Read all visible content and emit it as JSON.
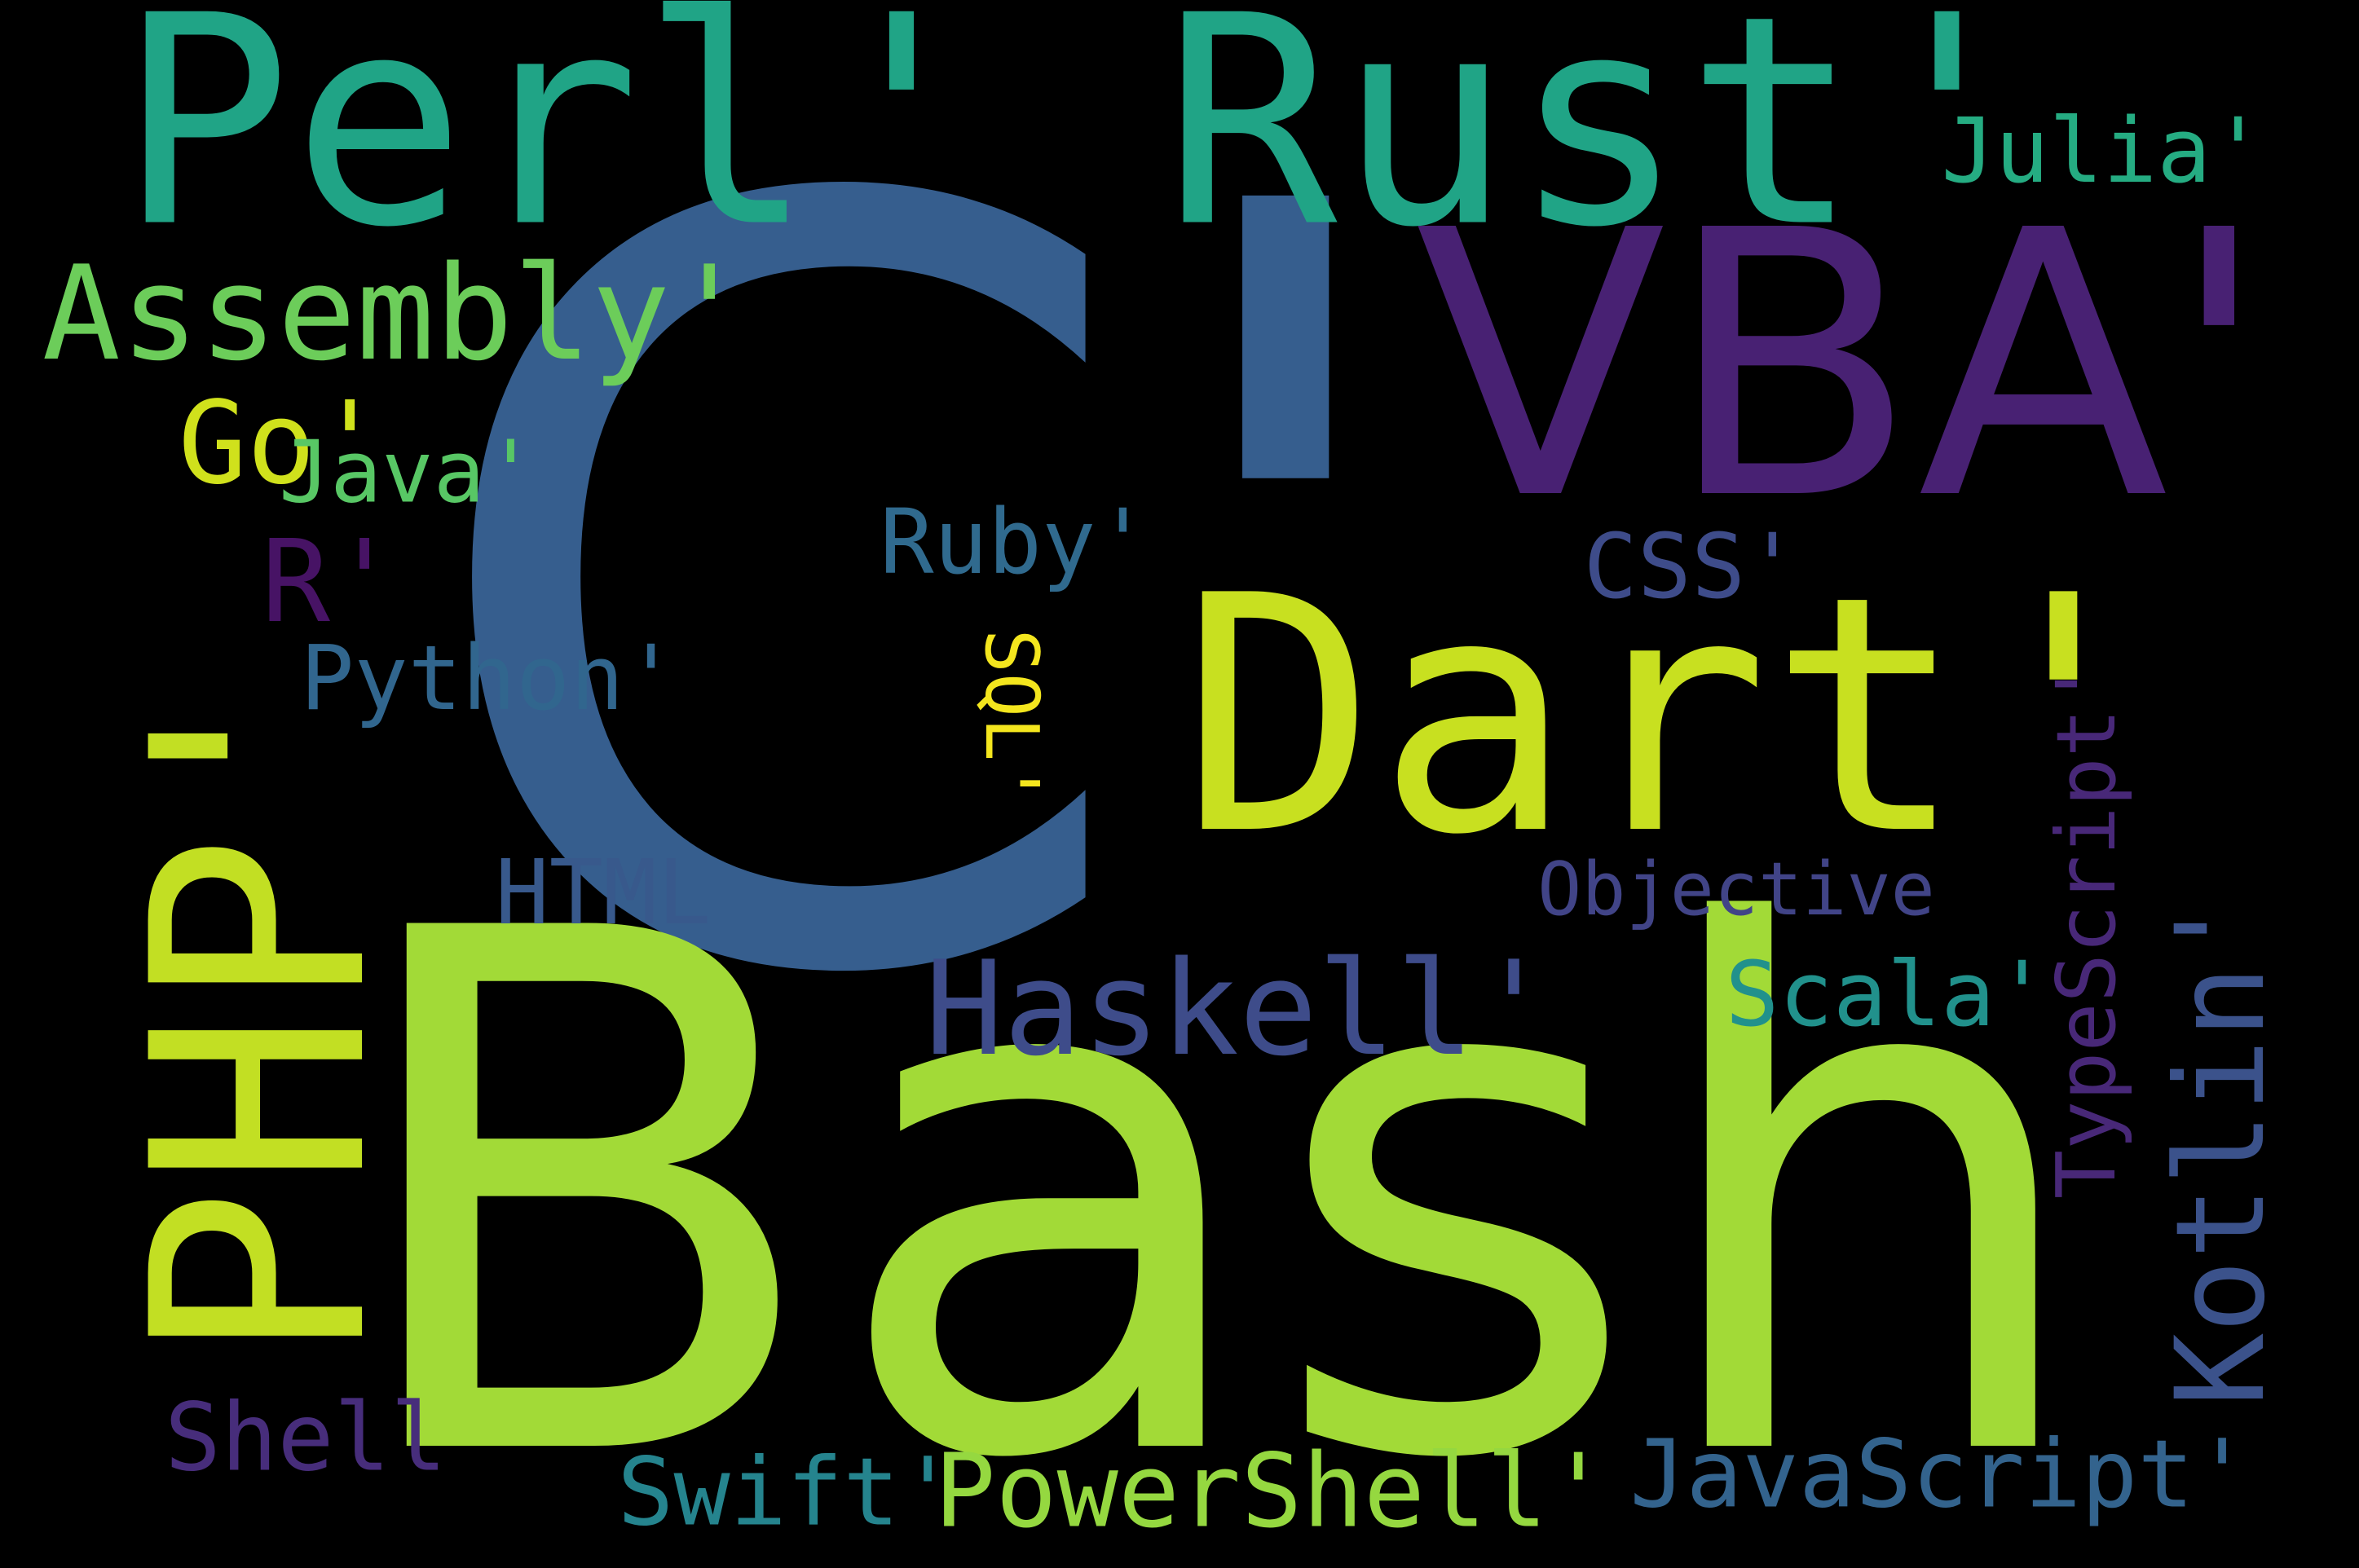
{
  "words": [
    {
      "id": "c",
      "text": "C'",
      "color": "#365e8e",
      "rotate": 0
    },
    {
      "id": "bash",
      "text": "Bash",
      "color": "#a2da37",
      "rotate": 0
    },
    {
      "id": "perl_rust",
      "text": "Perl' Rust'",
      "color": "#20a486",
      "rotate": 0
    },
    {
      "id": "vba",
      "text": "VBA'",
      "color": "#482173",
      "rotate": 0
    },
    {
      "id": "dart",
      "text": "Dart'",
      "color": "#c8e020",
      "rotate": 0
    },
    {
      "id": "php",
      "text": "PHP'",
      "color": "#c2df23",
      "rotate": -90
    },
    {
      "id": "assembly",
      "text": "Assembly'",
      "color": "#6ccd5a",
      "rotate": 0
    },
    {
      "id": "go",
      "text": "Go'",
      "color": "#d0e11c",
      "rotate": 0
    },
    {
      "id": "java",
      "text": "Java'",
      "color": "#58c765",
      "rotate": 0
    },
    {
      "id": "r",
      "text": "R'",
      "color": "#471365",
      "rotate": 0
    },
    {
      "id": "python",
      "text": "Python'",
      "color": "#31668e",
      "rotate": 0
    },
    {
      "id": "ruby",
      "text": "Ruby'",
      "color": "#306a8e",
      "rotate": 0
    },
    {
      "id": "sql",
      "text": "SQL'",
      "color": "#f4e61e",
      "rotate": 90
    },
    {
      "id": "css",
      "text": "CSS'",
      "color": "#3e4c8a",
      "rotate": 0
    },
    {
      "id": "julia",
      "text": "Julia'",
      "color": "#25ac82",
      "rotate": 0
    },
    {
      "id": "html",
      "text": "HTML",
      "color": "#38598c",
      "rotate": 0
    },
    {
      "id": "objective",
      "text": "Objective",
      "color": "#414487",
      "rotate": 0
    },
    {
      "id": "haskell",
      "text": "Haskell'",
      "color": "#3e4c8a",
      "rotate": 0
    },
    {
      "id": "scala",
      "text": "Scala'",
      "color": "#21918c",
      "rotate": 0
    },
    {
      "id": "typescript",
      "text": "TypeScript'",
      "color": "#482878",
      "rotate": -90
    },
    {
      "id": "kotlin",
      "text": "Kotlin'",
      "color": "#3b528b",
      "rotate": -90
    },
    {
      "id": "shell",
      "text": "Shell",
      "color": "#472d7b",
      "rotate": 0
    },
    {
      "id": "swift",
      "text": "Swift'",
      "color": "#25848e",
      "rotate": 0
    },
    {
      "id": "powershell",
      "text": "PowerShell'",
      "color": "#95d840",
      "rotate": 0
    },
    {
      "id": "javascript",
      "text": "JavaScript'",
      "color": "#33638d",
      "rotate": 0
    }
  ]
}
